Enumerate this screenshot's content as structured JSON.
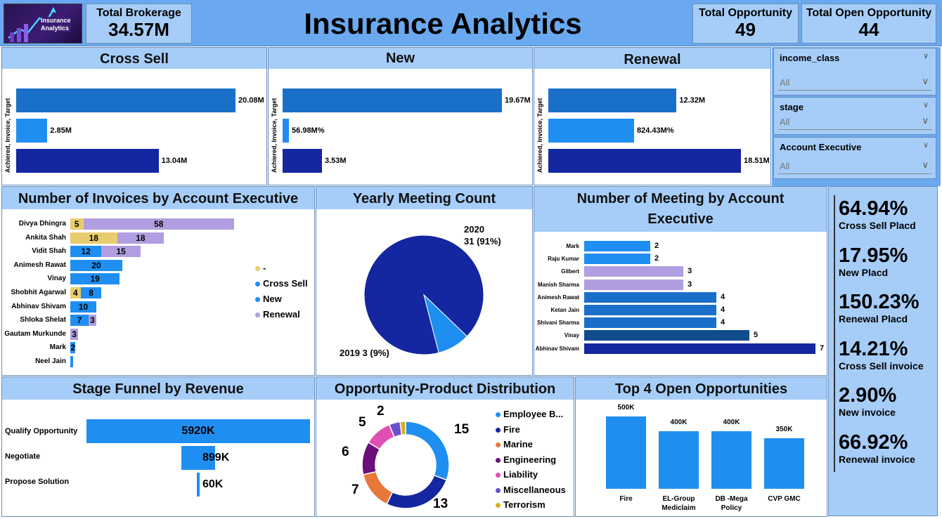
{
  "header": {
    "logo_text": [
      "Insurance",
      "Analytics"
    ],
    "title": "Insurance Analytics",
    "cards": [
      {
        "label": "Total Brokerage",
        "value": "34.57M"
      },
      {
        "label": "Total Opportunity",
        "value": "49"
      },
      {
        "label": "Total Open Opportunity",
        "value": "44"
      }
    ]
  },
  "target_panels": [
    {
      "title": "Cross Sell",
      "axis": "Achiered, Invoice, Target",
      "values": [
        20.08,
        2.85,
        13.04
      ],
      "labels": [
        "20.08M",
        "2.85M",
        "13.04M"
      ]
    },
    {
      "title": "New",
      "axis": "Achiered, Invoice, Target",
      "values": [
        19.67,
        0.57,
        3.53
      ],
      "labels": [
        "19.67M",
        "56.98M%",
        "3.53M"
      ]
    },
    {
      "title": "Renewal",
      "axis": "Achiered, Invoice, Target",
      "values": [
        12.32,
        8.24,
        18.51
      ],
      "labels": [
        "12.32M",
        "824.43M%",
        "18.51M"
      ]
    }
  ],
  "slicers": [
    {
      "title": "income_class",
      "value": "All"
    },
    {
      "title": "stage",
      "value": "All"
    },
    {
      "title": "Account Executive",
      "value": "All"
    }
  ],
  "invoices": {
    "title": "Number of Invoices by Account Executive",
    "rows": [
      {
        "name": "Divya Dhingra",
        "dash": 5,
        "cross": 0,
        "new": 0,
        "renewal": 58
      },
      {
        "name": "Ankita Shah",
        "dash": 18,
        "cross": 0,
        "new": 0,
        "renewal": 18
      },
      {
        "name": "Vidit Shah",
        "dash": 0,
        "cross": 12,
        "new": 0,
        "renewal": 15
      },
      {
        "name": "Animesh Rawat",
        "dash": 0,
        "cross": 20,
        "new": 0,
        "renewal": 0
      },
      {
        "name": "Vinay",
        "dash": 0,
        "cross": 19,
        "new": 0,
        "renewal": 0
      },
      {
        "name": "Shobhit Agarwal",
        "dash": 4,
        "cross": 8,
        "new": 0,
        "renewal": 0
      },
      {
        "name": "Abhinav Shivam",
        "dash": 0,
        "cross": 10,
        "new": 0,
        "renewal": 0
      },
      {
        "name": "Shloka Shelat",
        "dash": 0,
        "cross": 7,
        "new": 0,
        "renewal": 3
      },
      {
        "name": "Gautam Murkunde",
        "dash": 0,
        "cross": 0,
        "new": 0,
        "renewal": 3
      },
      {
        "name": "Mark",
        "dash": 0,
        "cross": 2,
        "new": 0,
        "renewal": 0
      },
      {
        "name": "Neel Jain",
        "dash": 0,
        "cross": 1,
        "new": 0,
        "renewal": 0
      }
    ],
    "legend": [
      {
        "label": "-",
        "color": "#e8cd6e"
      },
      {
        "label": "Cross Sell",
        "color": "#1f8ef1"
      },
      {
        "label": "New",
        "color": "#1f8ef1"
      },
      {
        "label": "Renewal",
        "color": "#b09ee0"
      }
    ]
  },
  "yearly": {
    "title": "Yearly Meeting Count",
    "slices": [
      {
        "year": "2020",
        "value": 31,
        "label_line1": "2020",
        "label_line2": "31 (91%)",
        "color": "#1427a0"
      },
      {
        "year": "2019",
        "value": 3,
        "label_line1": "2019 3 (9%)",
        "color": "#1f8ef1"
      }
    ]
  },
  "meetings": {
    "title_line1": "Number of Meeting by Account",
    "title_line2": "Executive",
    "rows": [
      {
        "name": "Mark",
        "value": 2,
        "color": "#1f8ef1"
      },
      {
        "name": "Raju Kumar",
        "value": 2,
        "color": "#1f8ef1"
      },
      {
        "name": "Gilbert",
        "value": 3,
        "color": "#b09ee0"
      },
      {
        "name": "Manish Sharma",
        "value": 3,
        "color": "#b09ee0"
      },
      {
        "name": "Animesh Rawat",
        "value": 4,
        "color": "#1a6fc9"
      },
      {
        "name": "Ketan Jain",
        "value": 4,
        "color": "#1a6fc9"
      },
      {
        "name": "Shivani Sharma",
        "value": 4,
        "color": "#1a6fc9"
      },
      {
        "name": "Vinay",
        "value": 5,
        "color": "#0f4c8c"
      },
      {
        "name": "Abhinav Shivam",
        "value": 7,
        "color": "#1427a0"
      }
    ]
  },
  "kpis": [
    {
      "value": "64.94%",
      "label": "Cross Sell Placd"
    },
    {
      "value": "17.95%",
      "label": "New Placd"
    },
    {
      "value": "150.23%",
      "label": "Renewal Placd"
    },
    {
      "value": "14.21%",
      "label": "Cross Sell invoice"
    },
    {
      "value": "2.90%",
      "label": "New invoice"
    },
    {
      "value": "66.92%",
      "label": "Renewal invoice"
    }
  ],
  "funnel": {
    "title": "Stage Funnel by Revenue",
    "rows": [
      {
        "stage": "Qualify Opportunity",
        "value": 5920,
        "label": "5920K"
      },
      {
        "stage": "Negotiate",
        "value": 899,
        "label": "899K"
      },
      {
        "stage": "Propose Solution",
        "value": 60,
        "label": "60K"
      }
    ]
  },
  "product": {
    "title": "Opportunity-Product Distribution",
    "slices": [
      {
        "name": "Employee B...",
        "value": 15,
        "color": "#1f8ef1"
      },
      {
        "name": "Fire",
        "value": 13,
        "color": "#1427a0"
      },
      {
        "name": "Marine",
        "value": 7,
        "color": "#e8773a"
      },
      {
        "name": "Engineering",
        "value": 6,
        "color": "#6b0f7a"
      },
      {
        "name": "Liability",
        "value": 5,
        "color": "#e04fb3"
      },
      {
        "name": "Miscellaneous",
        "value": 2,
        "color": "#6b4fc9"
      },
      {
        "name": "Terrorism",
        "value": 1,
        "color": "#d4b21a"
      }
    ],
    "outer_labels": [
      "15",
      "13",
      "7",
      "6",
      "5",
      "2"
    ]
  },
  "top4": {
    "title": "Top 4 Open Opportunities",
    "bars": [
      {
        "name_line1": "Fire",
        "name_line2": "",
        "value": 500,
        "label": "500K"
      },
      {
        "name_line1": "EL-Group",
        "name_line2": "Mediclaim",
        "value": 400,
        "label": "400K"
      },
      {
        "name_line1": "DB -Mega",
        "name_line2": "Policy",
        "value": 400,
        "label": "400K"
      },
      {
        "name_line1": "CVP GMC",
        "name_line2": "",
        "value": 350,
        "label": "350K"
      }
    ]
  },
  "colors": {
    "header": "#a6cdf8",
    "dark_blue": "#1427a0",
    "mid_blue": "#1a6fc9",
    "light_blue": "#1f8ef1"
  },
  "chart_data": [
    {
      "type": "bar",
      "title": "Cross Sell",
      "ylabel": "Achiered, Invoice, Target",
      "categories": [
        "Achiered",
        "Invoice",
        "Target"
      ],
      "values": [
        20.08,
        2.85,
        13.04
      ]
    },
    {
      "type": "bar",
      "title": "New",
      "ylabel": "Achiered, Invoice, Target",
      "categories": [
        "Achiered",
        "Invoice",
        "Target"
      ],
      "values": [
        19.67,
        0.57,
        3.53
      ]
    },
    {
      "type": "bar",
      "title": "Renewal",
      "ylabel": "Achiered, Invoice, Target",
      "categories": [
        "Achiered",
        "Invoice",
        "Target"
      ],
      "values": [
        12.32,
        8.24,
        18.51
      ]
    },
    {
      "type": "pie",
      "title": "Yearly Meeting Count",
      "categories": [
        "2020",
        "2019"
      ],
      "values": [
        31,
        3
      ]
    },
    {
      "type": "bar",
      "title": "Number of Meeting by Account Executive",
      "categories": [
        "Mark",
        "Raju Kumar",
        "Gilbert",
        "Manish Sharma",
        "Animesh Rawat",
        "Ketan Jain",
        "Shivani Sharma",
        "Vinay",
        "Abhinav Shivam"
      ],
      "values": [
        2,
        2,
        3,
        3,
        4,
        4,
        4,
        5,
        7
      ]
    },
    {
      "type": "bar",
      "title": "Stage Funnel by Revenue",
      "categories": [
        "Qualify Opportunity",
        "Negotiate",
        "Propose Solution"
      ],
      "values": [
        5920,
        899,
        60
      ]
    },
    {
      "type": "pie",
      "title": "Opportunity-Product Distribution",
      "categories": [
        "Employee B...",
        "Fire",
        "Marine",
        "Engineering",
        "Liability",
        "Miscellaneous",
        "Terrorism"
      ],
      "values": [
        15,
        13,
        7,
        6,
        5,
        2,
        1
      ]
    },
    {
      "type": "bar",
      "title": "Top 4 Open Opportunities",
      "categories": [
        "Fire",
        "EL-Group Mediclaim",
        "DB -Mega Policy",
        "CVP GMC"
      ],
      "values": [
        500,
        400,
        400,
        350
      ]
    }
  ]
}
